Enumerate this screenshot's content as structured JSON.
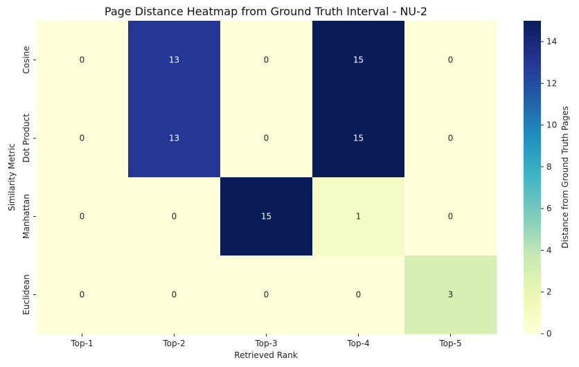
{
  "chart_data": {
    "type": "heatmap",
    "title": "Page Distance Heatmap from Ground Truth Interval - NU-2",
    "xlabel": "Retrieved Rank",
    "ylabel": "Similarity Metric",
    "x_categories": [
      "Top-1",
      "Top-2",
      "Top-3",
      "Top-4",
      "Top-5"
    ],
    "y_categories": [
      "Cosine",
      "Dot Product",
      "Manhattan",
      "Euclidean"
    ],
    "values": [
      [
        0,
        13,
        0,
        15,
        0
      ],
      [
        0,
        13,
        0,
        15,
        0
      ],
      [
        0,
        0,
        15,
        1,
        0
      ],
      [
        0,
        0,
        0,
        0,
        3
      ]
    ],
    "colorbar": {
      "label": "Distance from Ground Truth Pages",
      "range": [
        0,
        15
      ],
      "ticks": [
        0,
        2,
        4,
        6,
        8,
        10,
        12,
        14
      ],
      "colormap": "YlGnBu"
    }
  }
}
